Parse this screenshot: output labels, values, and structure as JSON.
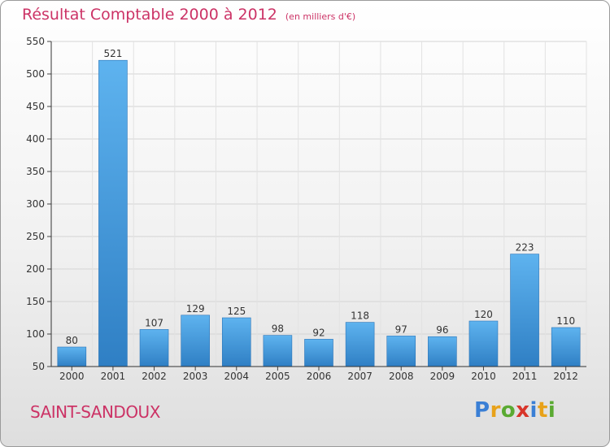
{
  "chart_data": {
    "type": "bar",
    "title": "Résultat Comptable 2000 à 2012",
    "unit_note": "(en milliers d'€)",
    "categories": [
      "2000",
      "2001",
      "2002",
      "2003",
      "2004",
      "2005",
      "2006",
      "2007",
      "2008",
      "2009",
      "2010",
      "2011",
      "2012"
    ],
    "values": [
      80,
      521,
      107,
      129,
      125,
      98,
      92,
      118,
      97,
      96,
      120,
      223,
      110
    ],
    "xlabel": "",
    "ylabel": "",
    "ylim": [
      50,
      550
    ],
    "yticks": [
      50,
      100,
      150,
      200,
      250,
      300,
      350,
      400,
      450,
      500,
      550
    ],
    "grid": true,
    "bar_color": "#3d95db"
  },
  "place_name": "SAINT-SANDOUX",
  "logo": {
    "letters": [
      "P",
      "r",
      "o",
      "x",
      "i",
      "t",
      "i"
    ],
    "colors": [
      "#3a7fd5",
      "#e8a21a",
      "#5aaa32",
      "#d8352a",
      "#3a7fd5",
      "#e8a21a",
      "#5aaa32"
    ]
  }
}
